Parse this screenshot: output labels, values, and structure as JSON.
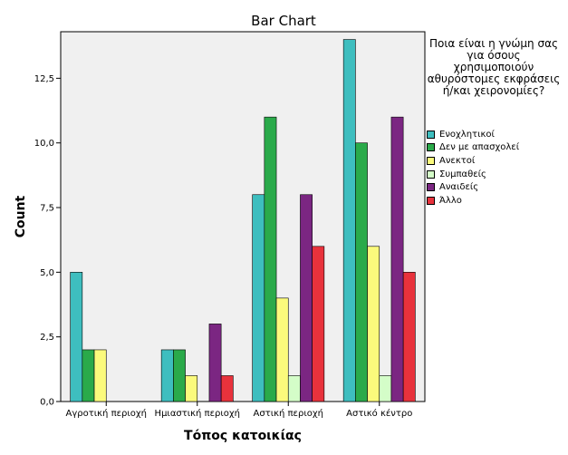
{
  "chart_data": {
    "type": "bar",
    "title": "Bar Chart",
    "xlabel": "Τόπος κατοικίας",
    "ylabel": "Count",
    "ylim": [
      0,
      14.3
    ],
    "yticks": [
      0,
      2.5,
      5,
      7.5,
      10,
      12.5
    ],
    "ytick_labels": [
      "0,0",
      "2,5",
      "5,0",
      "7,5",
      "10,0",
      "12,5"
    ],
    "categories": [
      "Αγροτική περιοχή",
      "Ημιαστική περιοχή",
      "Αστική περιοχή",
      "Αστικό κέντρο"
    ],
    "legend_title": "Ποια είναι η γνώμη σας για όσους χρησιμοποιούν αθυρόστομες εκφράσεις ή/και χειρονομίες?",
    "legend_position": "right",
    "grid": false,
    "series": [
      {
        "name": "Ενοχλητικοί",
        "color": "#3ebebf",
        "values": [
          5,
          2,
          8,
          14
        ]
      },
      {
        "name": "Δεν με απασχολεί",
        "color": "#2aaa4a",
        "values": [
          2,
          2,
          11,
          10
        ]
      },
      {
        "name": "Ανεκτοί",
        "color": "#fbfa7c",
        "values": [
          2,
          1,
          4,
          6
        ]
      },
      {
        "name": "Συμπαθείς",
        "color": "#d4fdc8",
        "values": [
          0,
          0,
          1,
          1
        ]
      },
      {
        "name": "Αναιδείς",
        "color": "#7b2682",
        "values": [
          0,
          3,
          8,
          11
        ]
      },
      {
        "name": "Άλλο",
        "color": "#e8323c",
        "values": [
          0,
          1,
          6,
          5
        ]
      }
    ]
  }
}
